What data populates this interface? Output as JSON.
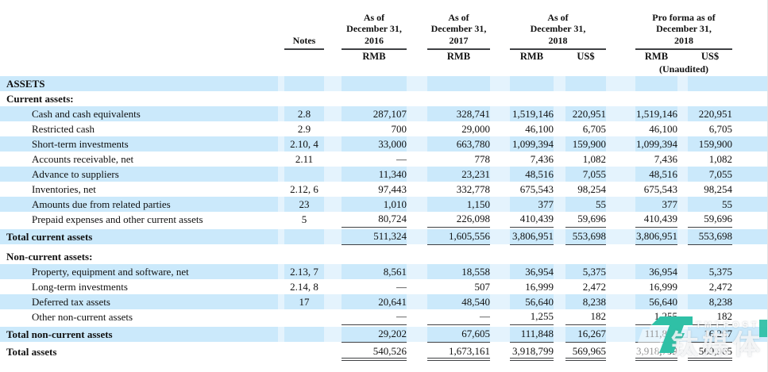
{
  "colors": {
    "row_highlight": "#cbe9fb",
    "row_highlight_gap": "#e4f3fd",
    "rule": "#3f4144",
    "watermark_teal": "#2fc0a6"
  },
  "header": {
    "notes_label": "Notes",
    "col_2016": {
      "line1": "As of",
      "line2": "December 31,",
      "line3": "2016",
      "unit": "RMB"
    },
    "col_2017": {
      "line1": "As of",
      "line2": "December 31,",
      "line3": "2017",
      "unit": "RMB"
    },
    "col_2018": {
      "line1": "As of",
      "line2": "December 31,",
      "line3": "2018",
      "unit_rmb": "RMB",
      "unit_usd": "US$"
    },
    "col_proforma": {
      "line1": "Pro forma as of",
      "line2": "December 31,",
      "line3": "2018",
      "unit_rmb": "RMB",
      "unit_usd": "US$",
      "note": "(Unaudited)"
    }
  },
  "table": {
    "rows": [
      {
        "type": "section",
        "hl": true,
        "label": "ASSETS",
        "notes": "",
        "values": [
          "",
          "",
          "",
          "",
          "",
          ""
        ]
      },
      {
        "type": "subheader",
        "hl": false,
        "label": "Current assets:",
        "notes": "",
        "values": [
          "",
          "",
          "",
          "",
          "",
          ""
        ]
      },
      {
        "type": "item",
        "hl": true,
        "label": "Cash and cash equivalents",
        "notes": "2.8",
        "values": [
          "287,107",
          "328,741",
          "1,519,146",
          "220,951",
          "1,519,146",
          "220,951"
        ]
      },
      {
        "type": "item",
        "hl": false,
        "label": "Restricted cash",
        "notes": "2.9",
        "values": [
          "700",
          "29,000",
          "46,100",
          "6,705",
          "46,100",
          "6,705"
        ]
      },
      {
        "type": "item",
        "hl": true,
        "label": "Short-term investments",
        "notes": "2.10, 4",
        "values": [
          "33,000",
          "663,780",
          "1,099,394",
          "159,900",
          "1,099,394",
          "159,900"
        ]
      },
      {
        "type": "item",
        "hl": false,
        "label": "Accounts receivable, net",
        "notes": "2.11",
        "values": [
          "—",
          "778",
          "7,436",
          "1,082",
          "7,436",
          "1,082"
        ]
      },
      {
        "type": "item",
        "hl": true,
        "label": "Advance to suppliers",
        "notes": "",
        "values": [
          "11,340",
          "23,231",
          "48,516",
          "7,055",
          "48,516",
          "7,055"
        ]
      },
      {
        "type": "item",
        "hl": false,
        "label": "Inventories, net",
        "notes": "2.12, 6",
        "values": [
          "97,443",
          "332,778",
          "675,543",
          "98,254",
          "675,543",
          "98,254"
        ]
      },
      {
        "type": "item",
        "hl": true,
        "label": "Amounts due from related parties",
        "notes": "23",
        "values": [
          "1,010",
          "1,150",
          "377",
          "55",
          "377",
          "55"
        ]
      },
      {
        "type": "item",
        "hl": false,
        "rule": "under",
        "label": "Prepaid expenses and other current assets",
        "notes": "5",
        "values": [
          "80,724",
          "226,098",
          "410,439",
          "59,696",
          "410,439",
          "59,696"
        ]
      },
      {
        "type": "gap-sm"
      },
      {
        "type": "subtotal",
        "hl": true,
        "rule": "under",
        "label": "Total current assets",
        "notes": "",
        "values": [
          "511,324",
          "1,605,556",
          "3,806,951",
          "553,698",
          "3,806,951",
          "553,698"
        ]
      },
      {
        "type": "gap-lg"
      },
      {
        "type": "subheader",
        "hl": false,
        "label": "Non-current assets:",
        "notes": "",
        "values": [
          "",
          "",
          "",
          "",
          "",
          ""
        ]
      },
      {
        "type": "item",
        "hl": true,
        "label": "Property, equipment and software, net",
        "notes": "2.13, 7",
        "values": [
          "8,561",
          "18,558",
          "36,954",
          "5,375",
          "36,954",
          "5,375"
        ]
      },
      {
        "type": "item",
        "hl": false,
        "label": "Long-term investments",
        "notes": "2.14, 8",
        "values": [
          "—",
          "507",
          "16,999",
          "2,472",
          "16,999",
          "2,472"
        ]
      },
      {
        "type": "item",
        "hl": true,
        "label": "Deferred tax assets",
        "notes": "17",
        "values": [
          "20,641",
          "48,540",
          "56,640",
          "8,238",
          "56,640",
          "8,238"
        ]
      },
      {
        "type": "item",
        "hl": false,
        "rule": "under",
        "label": "Other non-current assets",
        "notes": "",
        "values": [
          "—",
          "—",
          "1,255",
          "182",
          "1,255",
          "182"
        ]
      },
      {
        "type": "gap-sm"
      },
      {
        "type": "subtotal",
        "hl": true,
        "rule": "under",
        "label": "Total non-current assets",
        "notes": "",
        "values": [
          "29,202",
          "67,605",
          "111,848",
          "16,267",
          "111,848",
          "16,267"
        ]
      },
      {
        "type": "gap-sm"
      },
      {
        "type": "grandtotal",
        "hl": false,
        "rule": "double",
        "label": "Total assets",
        "notes": "",
        "values": [
          "540,526",
          "1,673,161",
          "3,918,799",
          "569,965",
          "3,918,799",
          "569,965"
        ]
      }
    ]
  },
  "watermark": {
    "brand": "TMTPOST",
    "cjk": "钛媒体"
  }
}
